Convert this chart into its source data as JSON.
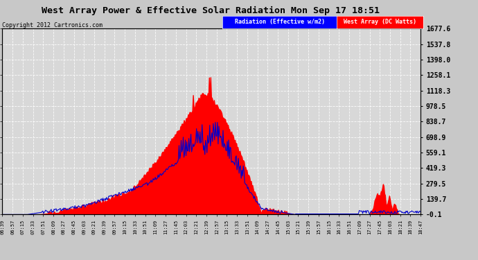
{
  "title": "West Array Power & Effective Solar Radiation Mon Sep 17 18:51",
  "copyright": "Copyright 2012 Cartronics.com",
  "legend_blue": "Radiation (Effective w/m2)",
  "legend_red": "West Array (DC Watts)",
  "y_ticks": [
    -0.1,
    139.7,
    279.5,
    419.3,
    559.1,
    698.9,
    838.7,
    978.5,
    1118.3,
    1258.1,
    1398.0,
    1537.8,
    1677.6
  ],
  "ylim": [
    -0.1,
    1677.6
  ],
  "bg_color": "#c8c8c8",
  "plot_bg": "#d8d8d8",
  "grid_color": "#aaaaaa",
  "title_color": "#000000",
  "x_labels": [
    "06:39",
    "06:57",
    "07:15",
    "07:33",
    "07:51",
    "08:09",
    "08:27",
    "08:45",
    "09:03",
    "09:21",
    "09:39",
    "09:57",
    "10:15",
    "10:33",
    "10:51",
    "11:09",
    "11:27",
    "11:45",
    "12:03",
    "12:21",
    "12:39",
    "12:57",
    "13:15",
    "13:33",
    "13:51",
    "14:09",
    "14:27",
    "14:45",
    "15:03",
    "15:21",
    "15:39",
    "15:57",
    "16:15",
    "16:33",
    "16:51",
    "17:09",
    "17:27",
    "17:45",
    "18:03",
    "18:21",
    "18:39",
    "18:47"
  ],
  "red_color": "#ff0000",
  "blue_line_color": "#0000cc"
}
